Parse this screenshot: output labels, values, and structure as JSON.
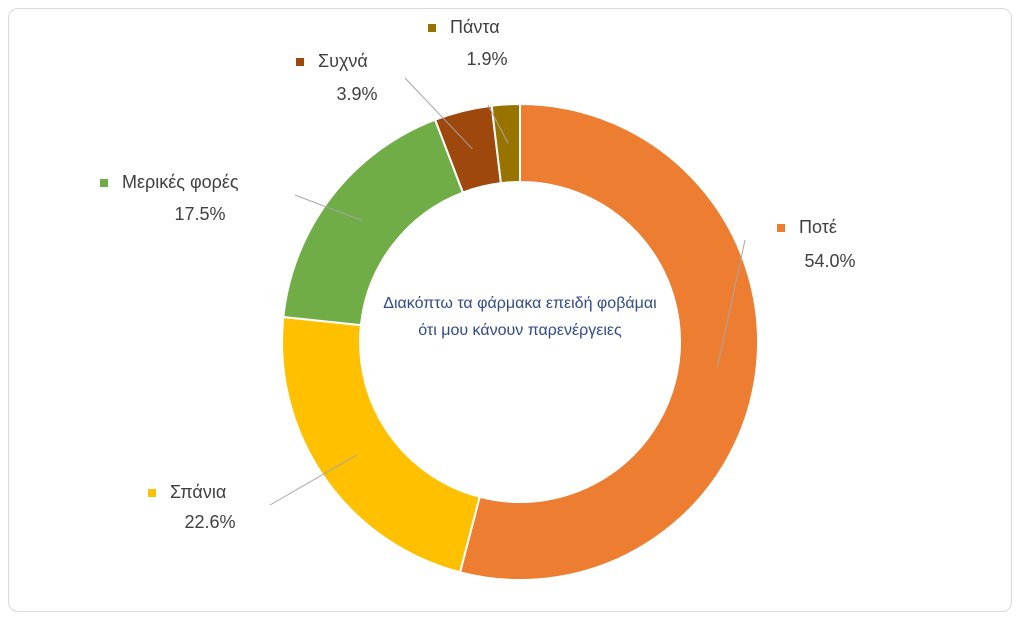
{
  "chart_data": {
    "type": "donut",
    "title": "Διακόπτω τα φάρμακα επειδή φοβάμαι ότι μου κάνουν παρενέργειες",
    "categories": [
      "Ποτέ",
      "Σπάνια",
      "Μερικές φορές",
      "Συχνά",
      "Πάντα"
    ],
    "values": [
      54.0,
      22.6,
      17.5,
      3.9,
      1.9
    ],
    "value_labels": [
      "54.0%",
      "22.6%",
      "17.5%",
      "3.9%",
      "1.9%"
    ],
    "colors": [
      "#ED7D31",
      "#FFC000",
      "#70AD47",
      "#9E480E",
      "#997300"
    ]
  }
}
